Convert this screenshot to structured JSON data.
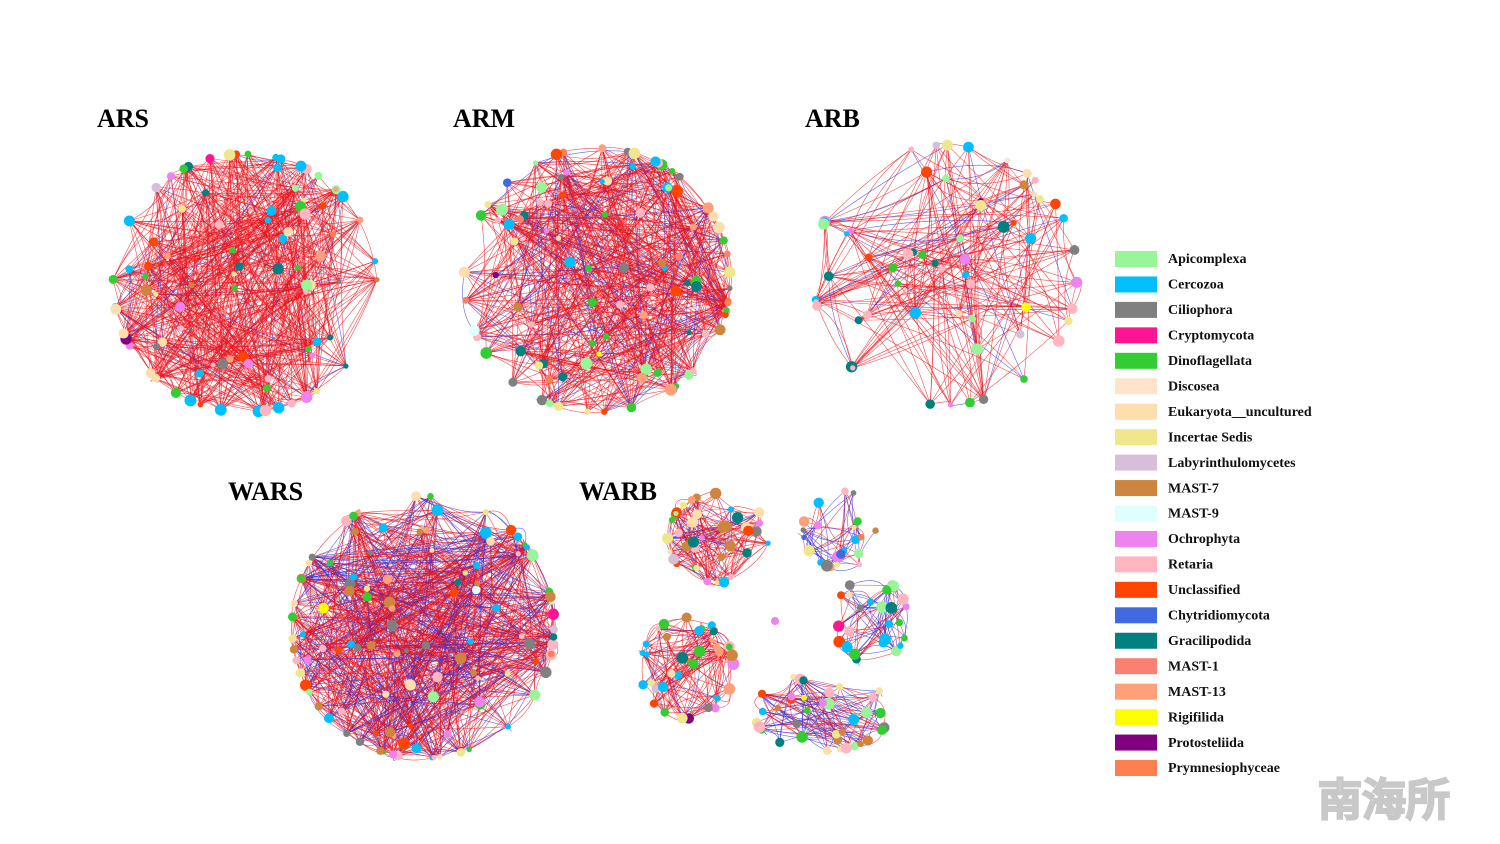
{
  "panels": [
    {
      "label": "ARS"
    },
    {
      "label": "ARM"
    },
    {
      "label": "ARB"
    },
    {
      "label": "WARS"
    },
    {
      "label": "WARB"
    }
  ],
  "legend": [
    {
      "name": "Apicomplexa",
      "color": "#98f598"
    },
    {
      "name": "Cercozoa",
      "color": "#00bfff"
    },
    {
      "name": "Ciliophora",
      "color": "#808080"
    },
    {
      "name": "Cryptomycota",
      "color": "#ff1493"
    },
    {
      "name": "Dinoflagellata",
      "color": "#32cd32"
    },
    {
      "name": "Discosea",
      "color": "#ffe4cc"
    },
    {
      "name": "Eukaryota__uncultured",
      "color": "#ffdead"
    },
    {
      "name": "Incertae Sedis",
      "color": "#f0e68c"
    },
    {
      "name": "Labyrinthulomycetes",
      "color": "#d8bfd8"
    },
    {
      "name": "MAST-7",
      "color": "#cd853f"
    },
    {
      "name": "MAST-9",
      "color": "#e0ffff"
    },
    {
      "name": "Ochrophyta",
      "color": "#ee82ee"
    },
    {
      "name": "Retaria",
      "color": "#ffb6c1"
    },
    {
      "name": "Unclassified",
      "color": "#ff4500"
    },
    {
      "name": "Chytridiomycota",
      "color": "#4169e1"
    },
    {
      "name": "Gracilipodida",
      "color": "#008080"
    },
    {
      "name": "MAST-1",
      "color": "#fa8072"
    },
    {
      "name": "MAST-13",
      "color": "#ffa07a"
    },
    {
      "name": "Rigifilida",
      "color": "#ffff00"
    },
    {
      "name": "Protosteliida",
      "color": "#800080"
    },
    {
      "name": "Prymnesiophyceae",
      "color": "#ff7f50"
    }
  ],
  "watermark": "南海所"
}
